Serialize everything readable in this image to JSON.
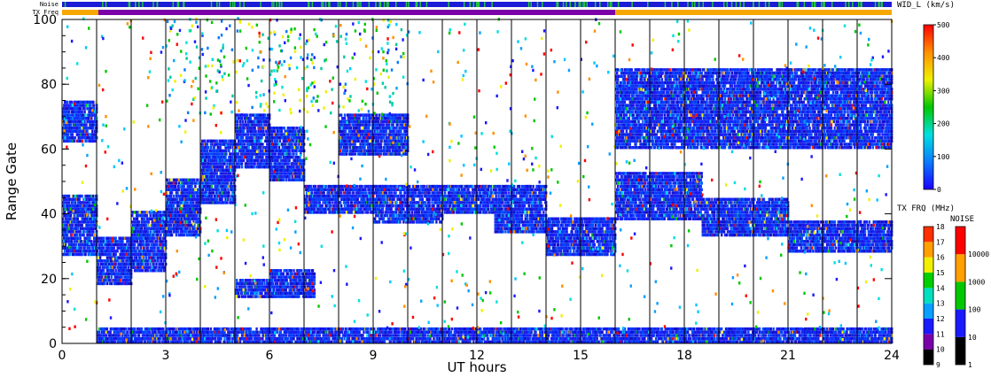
{
  "chart_data": {
    "type": "heatmap",
    "xlabel": "UT hours",
    "ylabel": "Range Gate",
    "xlim": [
      0,
      24
    ],
    "ylim": [
      0,
      100
    ],
    "x_ticks": [
      "0",
      "3",
      "6",
      "9",
      "12",
      "15",
      "18",
      "21",
      "24"
    ],
    "x_tick_values": [
      0,
      3,
      6,
      9,
      12,
      15,
      18,
      21,
      24
    ],
    "y_ticks": [
      "0",
      "20",
      "40",
      "60",
      "80",
      "100"
    ],
    "y_tick_values": [
      0,
      20,
      40,
      60,
      80,
      100
    ],
    "scan_boundaries_ut": [
      1,
      2,
      3,
      4,
      5,
      6,
      7,
      8,
      9,
      10,
      11,
      12,
      13,
      14,
      15,
      16,
      17,
      18,
      19,
      20,
      21,
      22,
      23,
      24
    ],
    "top_bars": {
      "noise_label": "Noise",
      "txfreq_label": "TX Freq",
      "txfreq_color": "#f7a800",
      "txfreq_gap_ut": [
        1.05,
        16.0
      ],
      "txfreq_gap_color": "#7a00a8",
      "noise_color": "#1c1cd6",
      "noise_flecks": "#22c83a"
    },
    "colorbars": {
      "width": {
        "title": "WID_L (km/s)",
        "min": 0,
        "max": 500,
        "ticks": [
          "0",
          "100",
          "200",
          "300",
          "400",
          "500"
        ],
        "tick_values": [
          0,
          100,
          200,
          300,
          400,
          500
        ],
        "stops": [
          "#1a00ff",
          "#0a7bff",
          "#00e0e0",
          "#00c800",
          "#f0f000",
          "#ff9000",
          "#ff0000"
        ]
      },
      "txfreq": {
        "title": "TX FRQ (MHz)",
        "ticks": [
          "9",
          "10",
          "11",
          "12",
          "13",
          "14",
          "15",
          "16",
          "17",
          "18"
        ],
        "colors": [
          "#000000",
          "#7a00a8",
          "#1a1aff",
          "#0aa0ff",
          "#00e0c0",
          "#00d000",
          "#f0f000",
          "#ffa000",
          "#ff3000",
          "#e00000"
        ]
      },
      "noise": {
        "title": "NOISE",
        "ticks": [
          "1",
          "10",
          "100",
          "1000",
          "10000"
        ],
        "colors": [
          "#000000",
          "#1a1aff",
          "#00c800",
          "#ffa000",
          "#ff0000"
        ]
      }
    },
    "echo_bands": [
      {
        "x_start": 0.0,
        "x_end": 1.0,
        "gate_lo": 27,
        "gate_hi": 45
      },
      {
        "x_start": 1.0,
        "x_end": 2.0,
        "gate_lo": 18,
        "gate_hi": 32
      },
      {
        "x_start": 2.0,
        "x_end": 3.0,
        "gate_lo": 22,
        "gate_hi": 40
      },
      {
        "x_start": 3.0,
        "x_end": 4.0,
        "gate_lo": 33,
        "gate_hi": 50
      },
      {
        "x_start": 4.0,
        "x_end": 5.0,
        "gate_lo": 43,
        "gate_hi": 62
      },
      {
        "x_start": 5.0,
        "x_end": 6.0,
        "gate_lo": 54,
        "gate_hi": 70
      },
      {
        "x_start": 6.0,
        "x_end": 7.0,
        "gate_lo": 50,
        "gate_hi": 66
      },
      {
        "x_start": 7.0,
        "x_end": 9.0,
        "gate_lo": 40,
        "gate_hi": 48
      },
      {
        "x_start": 9.0,
        "x_end": 11.0,
        "gate_lo": 37,
        "gate_hi": 48
      },
      {
        "x_start": 11.0,
        "x_end": 12.5,
        "gate_lo": 40,
        "gate_hi": 48
      },
      {
        "x_start": 12.5,
        "x_end": 14.0,
        "gate_lo": 34,
        "gate_hi": 48
      },
      {
        "x_start": 14.0,
        "x_end": 16.0,
        "gate_lo": 27,
        "gate_hi": 38
      },
      {
        "x_start": 16.0,
        "x_end": 18.5,
        "gate_lo": 38,
        "gate_hi": 52
      },
      {
        "x_start": 18.5,
        "x_end": 21.0,
        "gate_lo": 33,
        "gate_hi": 44
      },
      {
        "x_start": 21.0,
        "x_end": 24.0,
        "gate_lo": 28,
        "gate_hi": 37
      },
      {
        "x_start": 1.0,
        "x_end": 24.0,
        "gate_lo": 0,
        "gate_hi": 4
      },
      {
        "x_start": 5.0,
        "x_end": 6.0,
        "gate_lo": 14,
        "gate_hi": 19
      },
      {
        "x_start": 6.0,
        "x_end": 7.3,
        "gate_lo": 14,
        "gate_hi": 22
      },
      {
        "x_start": 0.0,
        "x_end": 1.0,
        "gate_lo": 62,
        "gate_hi": 74
      },
      {
        "x_start": 8.0,
        "x_end": 10.0,
        "gate_lo": 58,
        "gate_hi": 70
      },
      {
        "x_start": 16.0,
        "x_end": 24.0,
        "gate_lo": 60,
        "gate_hi": 84
      }
    ],
    "sparse_regions": [
      {
        "x_start": 3.0,
        "x_end": 10.0,
        "gate_lo": 70,
        "gate_hi": 100,
        "color": "cyan-green"
      },
      {
        "x_start": 0.0,
        "x_end": 24.0,
        "gate_lo": 0,
        "gate_hi": 100,
        "color": "random"
      }
    ]
  }
}
